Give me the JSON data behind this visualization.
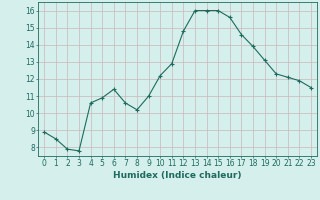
{
  "x": [
    0,
    1,
    2,
    3,
    4,
    5,
    6,
    7,
    8,
    9,
    10,
    11,
    12,
    13,
    14,
    15,
    16,
    17,
    18,
    19,
    20,
    21,
    22,
    23
  ],
  "y": [
    8.9,
    8.5,
    7.9,
    7.8,
    10.6,
    10.9,
    11.4,
    10.6,
    10.2,
    11.0,
    12.2,
    12.9,
    14.8,
    16.0,
    16.0,
    16.0,
    15.6,
    14.6,
    13.9,
    13.1,
    12.3,
    12.1,
    11.9,
    11.5
  ],
  "line_color": "#1e6b5e",
  "marker_color": "#1e6b5e",
  "bg_color": "#d4efec",
  "grid_color": "#c8b8b8",
  "xlabel": "Humidex (Indice chaleur)",
  "xlim": [
    -0.5,
    23.5
  ],
  "ylim": [
    7.5,
    16.5
  ],
  "yticks": [
    8,
    9,
    10,
    11,
    12,
    13,
    14,
    15,
    16
  ],
  "xticks": [
    0,
    1,
    2,
    3,
    4,
    5,
    6,
    7,
    8,
    9,
    10,
    11,
    12,
    13,
    14,
    15,
    16,
    17,
    18,
    19,
    20,
    21,
    22,
    23
  ],
  "tick_color": "#1e6b5e",
  "label_fontsize": 6.5,
  "tick_fontsize": 5.5
}
